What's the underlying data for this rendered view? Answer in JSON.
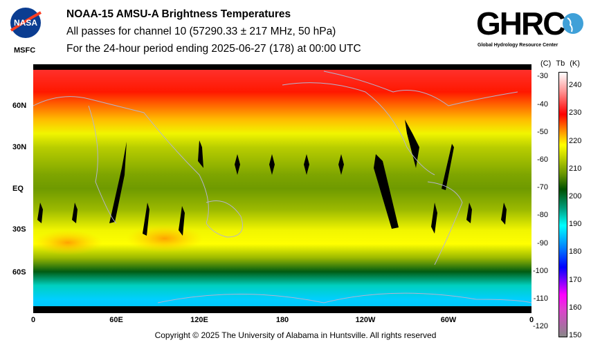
{
  "header": {
    "title": "NOAA-15 AMSU-A Brightness Temperatures",
    "subtitle": "All passes for channel 10 (57290.33 ± 217 MHz, 50 hPa)",
    "period": "For the 24-hour period ending 2025-06-27 (178) at 00:00 UTC"
  },
  "logos": {
    "nasa": "NASA",
    "msfc": "MSFC",
    "ghrc": "GHRC",
    "ghrc_full": "Global Hydrology Resource Center"
  },
  "footer": {
    "copyright": "Copyright © 2025 The University of Alabama in Huntsville.  All rights reserved"
  },
  "colors": {
    "no_data": "#000000",
    "coastline": "#b0b0c8"
  },
  "chart_data": {
    "type": "heatmap",
    "title": "NOAA-15 AMSU-A Brightness Temperatures",
    "lat_ticks": [
      "60N",
      "30N",
      "EQ",
      "30S",
      "60S"
    ],
    "lat_values": [
      60,
      30,
      0,
      -30,
      -60
    ],
    "lon_ticks": [
      "0",
      "60E",
      "120E",
      "180",
      "120W",
      "60W",
      "0"
    ],
    "lon_values": [
      0,
      60,
      120,
      180,
      240,
      300,
      360
    ],
    "xlim": [
      0,
      360
    ],
    "ylim": [
      -90,
      90
    ],
    "colorbar": {
      "header_c": "(C)",
      "header_tb": "Tb",
      "header_k": "(K)",
      "range_k": [
        150,
        245
      ],
      "kelvin_ticks": [
        "240",
        "230",
        "220",
        "210",
        "200",
        "190",
        "180",
        "170",
        "160",
        "150"
      ],
      "celsius_ticks": [
        "-30",
        "-40",
        "-50",
        "-60",
        "-70",
        "-80",
        "-90",
        "-100",
        "-110",
        "-120"
      ],
      "stops": [
        {
          "k": 150,
          "color": "#888888"
        },
        {
          "k": 160,
          "color": "#e040d0"
        },
        {
          "k": 165,
          "color": "#ff00ff"
        },
        {
          "k": 175,
          "color": "#0000ff"
        },
        {
          "k": 182,
          "color": "#0080ff"
        },
        {
          "k": 190,
          "color": "#00ffff"
        },
        {
          "k": 196,
          "color": "#00a080"
        },
        {
          "k": 203,
          "color": "#005000"
        },
        {
          "k": 208,
          "color": "#609000"
        },
        {
          "k": 215,
          "color": "#c8d800"
        },
        {
          "k": 219,
          "color": "#ffff00"
        },
        {
          "k": 224,
          "color": "#ff9000"
        },
        {
          "k": 230,
          "color": "#ff0000"
        },
        {
          "k": 238,
          "color": "#ff9090"
        },
        {
          "k": 245,
          "color": "#ffffff"
        }
      ]
    },
    "zonal_profile_k": [
      {
        "lat": 90,
        "k": 233
      },
      {
        "lat": 70,
        "k": 229
      },
      {
        "lat": 50,
        "k": 222
      },
      {
        "lat": 40,
        "k": 218
      },
      {
        "lat": 30,
        "k": 214
      },
      {
        "lat": 10,
        "k": 210
      },
      {
        "lat": 0,
        "k": 209
      },
      {
        "lat": -15,
        "k": 212
      },
      {
        "lat": -30,
        "k": 218
      },
      {
        "lat": -40,
        "k": 219
      },
      {
        "lat": -50,
        "k": 212
      },
      {
        "lat": -60,
        "k": 202
      },
      {
        "lat": -70,
        "k": 193
      },
      {
        "lat": -80,
        "k": 187
      },
      {
        "lat": -90,
        "k": 186
      }
    ]
  }
}
